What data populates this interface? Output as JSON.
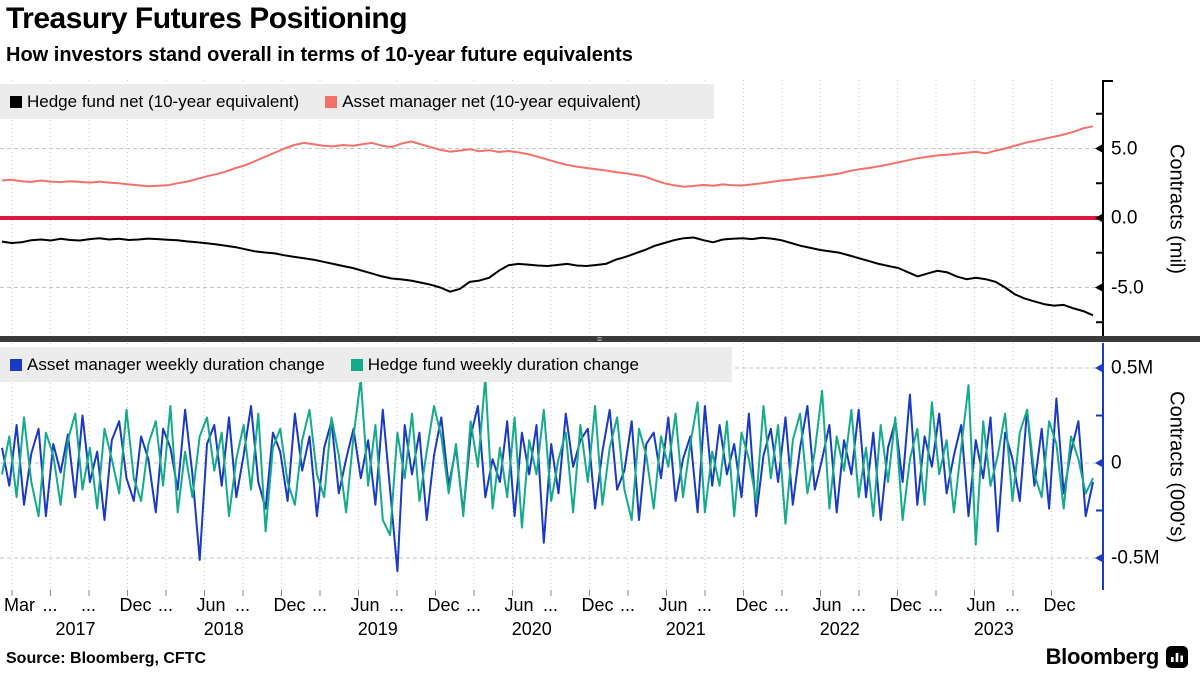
{
  "header": {
    "title": "Treasury Futures Positioning",
    "subtitle": "How investors stand overall in terms of 10-year future equivalents"
  },
  "footer": {
    "source": "Source: Bloomberg, CFTC",
    "brand": "Bloomberg",
    "brand_icon": "bar-chart-terminal-icon"
  },
  "colors": {
    "hedge_fund_net": "#000000",
    "asset_manager_net": "#f4716b",
    "zero_line": "#e0173c",
    "asset_manager_weekly": "#1a39c4",
    "hedge_fund_weekly": "#13ab89",
    "legend_background": "#ececec",
    "divider": "#3a3a3a",
    "grid": "#c8c8c8"
  },
  "x_axis": {
    "tick_labels": [
      "Mar",
      "...",
      "...",
      "Dec",
      "...",
      "Jun",
      "...",
      "Dec",
      "...",
      "Jun",
      "...",
      "Dec",
      "...",
      "Jun",
      "...",
      "Dec",
      "...",
      "Jun",
      "...",
      "Dec",
      "...",
      "Jun",
      "...",
      "Dec",
      "...",
      "Jun",
      "...",
      "Dec"
    ],
    "years": [
      {
        "label": "2017",
        "tick_center": 1.65
      },
      {
        "label": "2018",
        "tick_center": 5.5
      },
      {
        "label": "2019",
        "tick_center": 9.5
      },
      {
        "label": "2020",
        "tick_center": 13.5
      },
      {
        "label": "2021",
        "tick_center": 17.5
      },
      {
        "label": "2022",
        "tick_center": 21.5
      },
      {
        "label": "2023",
        "tick_center": 25.5
      }
    ],
    "range_note": "Mar 2017 to Dec 2023, quarterly ticks"
  },
  "chart_data": [
    {
      "type": "line",
      "panel": "top",
      "ylabel": "Contracts (mil)",
      "ylim": [
        -8.6,
        9.9
      ],
      "grid": "on",
      "legend_position": "top-left",
      "yticks": [
        {
          "value": 5.0,
          "label": "5.0"
        },
        {
          "value": 0.0,
          "label": "0.0"
        },
        {
          "value": -5.0,
          "label": "-5.0"
        }
      ],
      "minor_ticks": [
        7.5,
        2.5,
        -2.5,
        -7.5
      ],
      "zero_line_value": 0.0,
      "series": [
        {
          "name": "Hedge fund net (10-year equivalent)",
          "color": "#000000",
          "values": [
            -1.7,
            -1.8,
            -1.75,
            -1.6,
            -1.55,
            -1.62,
            -1.5,
            -1.58,
            -1.62,
            -1.52,
            -1.45,
            -1.55,
            -1.5,
            -1.58,
            -1.55,
            -1.48,
            -1.52,
            -1.56,
            -1.6,
            -1.68,
            -1.75,
            -1.82,
            -1.9,
            -2.0,
            -2.1,
            -2.25,
            -2.4,
            -2.48,
            -2.55,
            -2.68,
            -2.8,
            -2.9,
            -3.0,
            -3.15,
            -3.3,
            -3.45,
            -3.6,
            -3.8,
            -4.0,
            -4.2,
            -4.35,
            -4.42,
            -4.5,
            -4.65,
            -4.8,
            -5.0,
            -5.3,
            -5.1,
            -4.6,
            -4.5,
            -4.3,
            -3.8,
            -3.4,
            -3.3,
            -3.35,
            -3.42,
            -3.45,
            -3.38,
            -3.3,
            -3.42,
            -3.45,
            -3.38,
            -3.3,
            -3.0,
            -2.8,
            -2.55,
            -2.3,
            -2.0,
            -1.8,
            -1.6,
            -1.45,
            -1.4,
            -1.6,
            -1.75,
            -1.55,
            -1.5,
            -1.45,
            -1.52,
            -1.42,
            -1.48,
            -1.6,
            -1.8,
            -2.0,
            -2.15,
            -2.3,
            -2.4,
            -2.5,
            -2.7,
            -2.9,
            -3.1,
            -3.3,
            -3.45,
            -3.6,
            -3.9,
            -4.2,
            -4.0,
            -3.8,
            -3.9,
            -4.2,
            -4.4,
            -4.3,
            -4.4,
            -4.6,
            -5.0,
            -5.5,
            -5.8,
            -6.0,
            -6.2,
            -6.3,
            -6.25,
            -6.5,
            -6.7,
            -7.0
          ]
        },
        {
          "name": "Asset manager net (10-year equivalent)",
          "color": "#f4716b",
          "values": [
            2.7,
            2.75,
            2.65,
            2.6,
            2.7,
            2.62,
            2.58,
            2.65,
            2.6,
            2.55,
            2.62,
            2.55,
            2.5,
            2.42,
            2.35,
            2.28,
            2.32,
            2.35,
            2.5,
            2.62,
            2.8,
            3.0,
            3.15,
            3.35,
            3.6,
            3.8,
            4.1,
            4.4,
            4.7,
            5.0,
            5.25,
            5.4,
            5.3,
            5.2,
            5.15,
            5.25,
            5.2,
            5.3,
            5.4,
            5.2,
            5.1,
            5.35,
            5.5,
            5.3,
            5.1,
            4.9,
            4.78,
            4.85,
            4.95,
            4.8,
            4.88,
            4.75,
            4.82,
            4.72,
            4.6,
            4.4,
            4.2,
            4.0,
            3.82,
            3.7,
            3.6,
            3.5,
            3.42,
            3.3,
            3.22,
            3.1,
            2.98,
            2.72,
            2.5,
            2.35,
            2.25,
            2.3,
            2.38,
            2.32,
            2.42,
            2.36,
            2.34,
            2.42,
            2.5,
            2.6,
            2.7,
            2.75,
            2.85,
            2.92,
            3.0,
            3.1,
            3.2,
            3.38,
            3.5,
            3.6,
            3.72,
            3.85,
            4.0,
            4.15,
            4.3,
            4.4,
            4.5,
            4.55,
            4.62,
            4.7,
            4.76,
            4.65,
            4.85,
            5.0,
            5.2,
            5.4,
            5.55,
            5.7,
            5.85,
            6.0,
            6.2,
            6.45,
            6.6
          ]
        }
      ]
    },
    {
      "type": "line",
      "panel": "bottom",
      "ylabel": "Contracts (000's)",
      "ylim": [
        -0.67,
        0.63
      ],
      "grid": "on",
      "legend_position": "top-left",
      "yticks": [
        {
          "value": 0.5,
          "label": "0.5M"
        },
        {
          "value": 0.0,
          "label": "0"
        },
        {
          "value": -0.5,
          "label": "-0.5M"
        }
      ],
      "minor_ticks": [
        0.25,
        -0.25
      ],
      "series": [
        {
          "name": "Asset manager weekly duration change",
          "color": "#1a39c4",
          "values": [
            0.08,
            -0.12,
            0.2,
            -0.22,
            0.05,
            0.18,
            -0.28,
            0.1,
            -0.05,
            0.15,
            -0.18,
            0.25,
            -0.1,
            0.06,
            -0.3,
            0.12,
            0.22,
            -0.08,
            -0.2,
            0.14,
            0.02,
            -0.26,
            0.18,
            0.08,
            -0.14,
            0.28,
            -0.06,
            -0.51,
            0.1,
            0.2,
            -0.12,
            0.24,
            -0.18,
            0.04,
            0.3,
            -0.1,
            -0.24,
            0.16,
            0.06,
            -0.2,
            0.26,
            -0.04,
            0.14,
            -0.28,
            0.08,
            0.22,
            -0.16,
            0.02,
            0.18,
            -0.08,
            0.12,
            -0.22,
            0.28,
            -0.14,
            -0.57,
            0.2,
            -0.06,
            0.16,
            -0.3,
            0.04,
            0.24,
            -0.12,
            0.08,
            -0.26,
            0.14,
            0.3,
            -0.18,
            0.02,
            -0.1,
            0.22,
            -0.28,
            0.16,
            -0.06,
            0.2,
            -0.42,
            0.1,
            -0.16,
            0.26,
            -0.02,
            0.12,
            0.18,
            -0.24,
            0.06,
            0.28,
            -0.14,
            -0.04,
            0.22,
            -0.3,
            0.1,
            0.16,
            -0.08,
            0.24,
            -0.2,
            0.02,
            0.14,
            -0.26,
            0.3,
            -0.12,
            0.2,
            -0.06,
            0.1,
            -0.18,
            0.26,
            -0.28,
            0.04,
            0.18,
            -0.1,
            0.24,
            -0.22,
            0.08,
            0.3,
            -0.14,
            0.02,
            0.2,
            -0.26,
            0.12,
            -0.06,
            0.28,
            -0.18,
            0.16,
            -0.3,
            0.08,
            0.22,
            -0.1,
            0.36,
            -0.22,
            0.14,
            -0.02,
            0.26,
            -0.16,
            0.04,
            0.2,
            -0.28,
            0.12,
            -0.08,
            0.24,
            -0.36,
            0.16,
            0.02,
            -0.2,
            0.28,
            -0.12,
            0.18,
            -0.24,
            0.34,
            -0.16,
            0.06,
            0.22,
            -0.28,
            -0.1
          ]
        },
        {
          "name": "Hedge fund weekly duration change",
          "color": "#13ab89",
          "values": [
            -0.06,
            0.14,
            -0.18,
            0.24,
            -0.1,
            -0.28,
            0.16,
            0.04,
            -0.22,
            0.12,
            0.26,
            -0.14,
            0.08,
            -0.24,
            0.18,
            0.02,
            -0.16,
            0.28,
            -0.08,
            -0.2,
            0.1,
            0.22,
            -0.12,
            0.3,
            -0.26,
            0.06,
            -0.18,
            0.14,
            0.24,
            -0.04,
            0.16,
            -0.28,
            0.02,
            0.2,
            -0.14,
            0.26,
            -0.36,
            0.08,
            0.18,
            -0.1,
            -0.22,
            0.12,
            0.28,
            -0.06,
            -0.18,
            0.24,
            0.04,
            -0.26,
            0.14,
            0.44,
            -0.12,
            0.2,
            -0.3,
            -0.38,
            0.16,
            -0.08,
            0.26,
            -0.2,
            0.06,
            0.3,
            0.14,
            -0.16,
            0.1,
            -0.28,
            0.22,
            -0.02,
            0.45,
            -0.24,
            0.08,
            -0.18,
            0.24,
            -0.34,
            0.12,
            -0.06,
            0.28,
            -0.2,
            0.02,
            0.16,
            -0.26,
            0.2,
            -0.1,
            0.3,
            -0.22,
            0.08,
            0.24,
            -0.14,
            -0.3,
            0.18,
            0.04,
            -0.24,
            0.14,
            -0.02,
            0.26,
            -0.18,
            0.1,
            0.32,
            -0.26,
            0.06,
            -0.12,
            0.22,
            -0.28,
            0.16,
            0.02,
            -0.2,
            0.3,
            -0.08,
            0.2,
            -0.32,
            0.12,
            0.26,
            -0.16,
            0.06,
            0.38,
            -0.24,
            0.14,
            -0.04,
            0.28,
            -0.18,
            0.08,
            -0.28,
            0.2,
            -0.1,
            0.24,
            -0.3,
            0.02,
            0.18,
            -0.22,
            0.32,
            -0.06,
            0.12,
            -0.26,
            0.08,
            0.41,
            -0.43,
            0.22,
            -0.12,
            0.04,
            0.26,
            -0.2,
            0.16,
            0.28,
            -0.06,
            -0.18,
            0.22,
            0.1,
            -0.24,
            0.14,
            0.02,
            -0.16,
            -0.08
          ]
        }
      ]
    }
  ]
}
